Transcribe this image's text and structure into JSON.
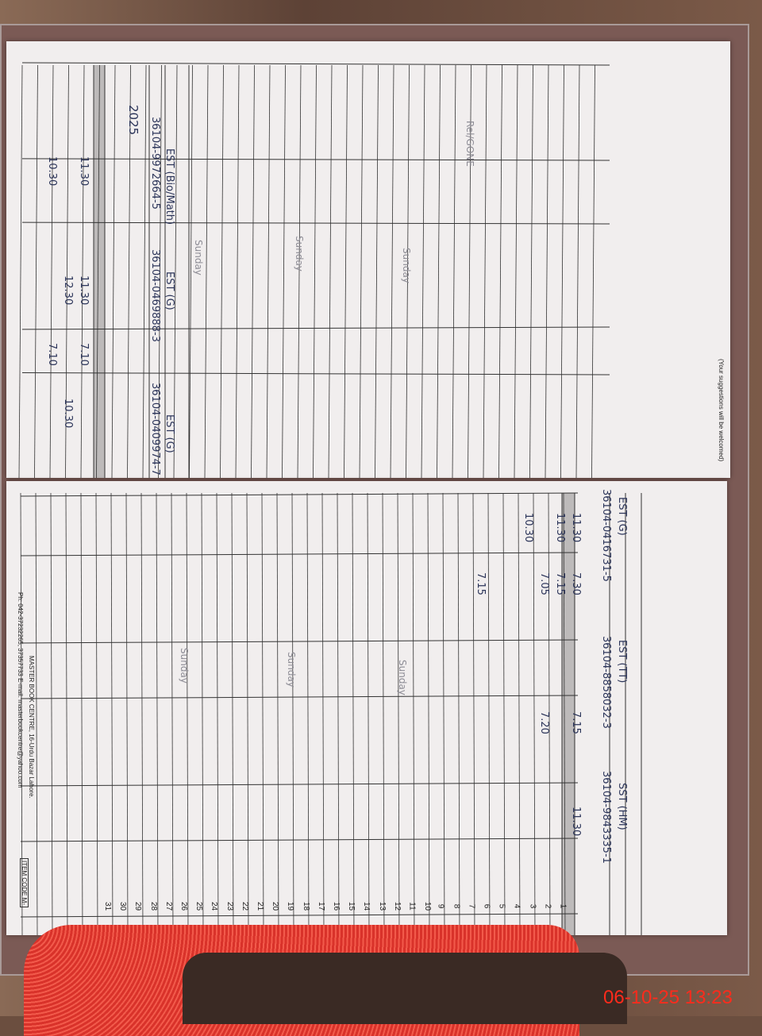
{
  "photo": {
    "timestamp": "06-10-25 13:23",
    "colors": {
      "paper": "#f1eeee",
      "ink": "#2b3459",
      "stamp": "#ff2b1c",
      "stool": "#e23b30"
    }
  },
  "top_page": {
    "year": "2025",
    "staff": [
      {
        "designation": "EST (Bio/Math)",
        "cnic": "36104-9972664-5"
      },
      {
        "designation": "EST (G)",
        "cnic": "36104-0469888-3"
      },
      {
        "designation": "EST (G)",
        "cnic": "36104-0409974-7"
      }
    ],
    "times": [
      "11.30",
      "11.30",
      "12.30",
      "10.30",
      "7.10",
      "7.10",
      "10.30"
    ],
    "notes": [
      "Sunday",
      "Sunday",
      "Sunday",
      "Rel/GONE"
    ],
    "footer": "(Your suggestions will be welcomed)"
  },
  "bottom_page": {
    "staff": [
      {
        "designation": "EST (G)",
        "cnic": "36104-0416731-5"
      },
      {
        "designation": "EST (TT)",
        "cnic": "36104-8858032-3"
      },
      {
        "designation": "SST (HM)",
        "cnic": "36104-9843335-1"
      }
    ],
    "times": [
      "7.30",
      "7.15",
      "7.05",
      "7.15",
      "11.30",
      "11.30",
      "10.30",
      "7.15",
      "7.20",
      "11.30"
    ],
    "notes": [
      "Sunday",
      "Sunday",
      "Sunday"
    ],
    "days": [
      "1",
      "2",
      "3",
      "4",
      "5",
      "6",
      "7",
      "8",
      "9",
      "10",
      "11",
      "12",
      "13",
      "14",
      "15",
      "16",
      "17",
      "18",
      "19",
      "20",
      "21",
      "22",
      "23",
      "24",
      "25",
      "26",
      "27",
      "28",
      "29",
      "30",
      "31"
    ],
    "publisher": "MASTER BOOK CENTRE, 16-Urdu Bazar Lahore.",
    "contact": "Ph: 042-37232265, 37357733 E-mail: masterbookcentre@yahoo.com",
    "item_code": "ITEM CODE M-"
  }
}
